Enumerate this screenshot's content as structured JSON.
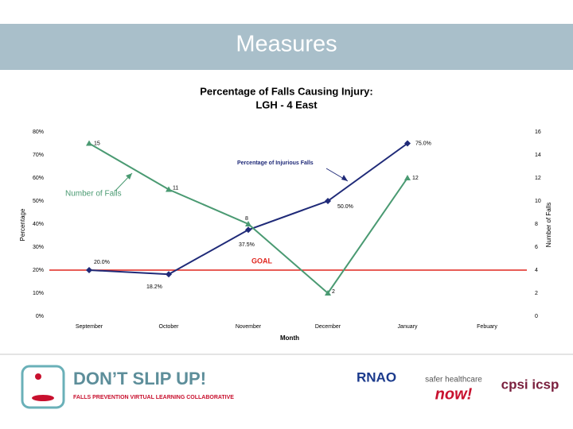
{
  "header": {
    "title": "Measures"
  },
  "chart_data": {
    "type": "line",
    "title": "Percentage of Falls Causing Injury:",
    "subtitle": "LGH - 4 East",
    "x_label": "Month",
    "y_label": "Percentage",
    "y2_label": "Number of Falls",
    "categories": [
      "September",
      "October",
      "November",
      "December",
      "January",
      "Febuary"
    ],
    "series": [
      {
        "name": "Percentage of Injurious Falls",
        "color": "#1f2a78",
        "values": [
          20.0,
          18.2,
          37.5,
          50.0,
          75.0,
          null
        ],
        "value_labels": [
          "20.0%",
          "18.2%",
          "37.5%",
          "50.0%",
          "75.0%",
          null
        ]
      },
      {
        "name": "Number of Falls",
        "color": "#4a9a72",
        "axis": "y2",
        "values": [
          15,
          11,
          8,
          2,
          12,
          null
        ]
      }
    ],
    "goal": {
      "value": 20,
      "label": "GOAL",
      "color": "#e0261f"
    },
    "ylim": [
      0,
      80
    ],
    "yticks": [
      {
        "value": 0,
        "label": "0%"
      },
      {
        "value": 10,
        "label": "10%"
      },
      {
        "value": 20,
        "label": "20%"
      },
      {
        "value": 30,
        "label": "30%"
      },
      {
        "value": 40,
        "label": "40%"
      },
      {
        "value": 50,
        "label": "50%"
      },
      {
        "value": 60,
        "label": "60%"
      },
      {
        "value": 70,
        "label": "70%"
      },
      {
        "value": 80,
        "label": "80%"
      }
    ],
    "y2lim": [
      0,
      16
    ],
    "y2ticks": [
      0,
      2,
      4,
      6,
      8,
      10,
      12,
      14,
      16
    ],
    "grid": false
  },
  "footer": {
    "campaign": "DON’T SLIP UP!",
    "campaign_subtitle": "FALLS PREVENTION VIRTUAL LEARNING COLLABORATIVE",
    "partner1": "RNAO",
    "partner2_top": "safer healthcare",
    "partner2_bottom": "now!",
    "partner3": "cpsi icsp"
  }
}
